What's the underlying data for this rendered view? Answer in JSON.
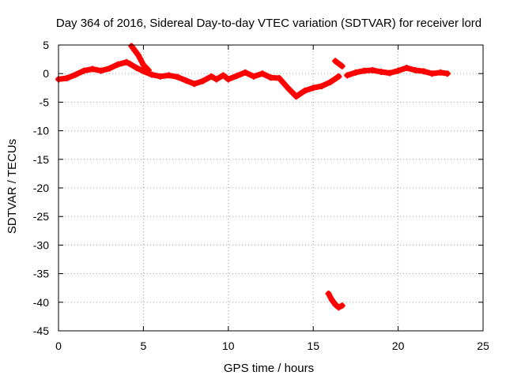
{
  "chart_data": {
    "type": "scatter",
    "title": "Day 364 of 2016, Sidereal Day-to-day VTEC variation (SDTVAR) for receiver lord",
    "xlabel": "GPS time / hours",
    "ylabel": "SDTVAR / TECUs",
    "xlim": [
      0,
      25
    ],
    "ylim": [
      -45,
      5
    ],
    "xticks": [
      0,
      5,
      10,
      15,
      20,
      25
    ],
    "yticks": [
      5,
      0,
      -5,
      -10,
      -15,
      -20,
      -25,
      -30,
      -35,
      -40,
      -45
    ],
    "grid": true,
    "series": [
      {
        "name": "SDTVAR",
        "color": "#ff0000",
        "segments": [
          [
            [
              0,
              -1.0
            ],
            [
              0.5,
              -0.8
            ],
            [
              1.0,
              -0.2
            ],
            [
              1.5,
              0.5
            ],
            [
              2.0,
              0.8
            ],
            [
              2.5,
              0.5
            ],
            [
              3.0,
              0.9
            ],
            [
              3.5,
              1.6
            ],
            [
              4.0,
              2.0
            ],
            [
              4.2,
              1.7
            ],
            [
              4.6,
              1.0
            ],
            [
              5.0,
              0.4
            ],
            [
              5.5,
              -0.2
            ],
            [
              6.0,
              -0.5
            ],
            [
              6.5,
              -0.3
            ],
            [
              7.0,
              -0.6
            ],
            [
              7.5,
              -1.2
            ],
            [
              8.0,
              -1.8
            ],
            [
              8.5,
              -1.3
            ],
            [
              9.0,
              -0.5
            ],
            [
              9.3,
              -1.0
            ],
            [
              9.7,
              -0.3
            ],
            [
              10.0,
              -1.0
            ],
            [
              10.5,
              -0.4
            ],
            [
              11.0,
              0.2
            ],
            [
              11.5,
              -0.5
            ],
            [
              12.0,
              0.0
            ],
            [
              12.5,
              -0.7
            ],
            [
              13.0,
              -0.8
            ],
            [
              13.5,
              -2.5
            ],
            [
              14.0,
              -4.0
            ],
            [
              14.5,
              -3.0
            ],
            [
              15.0,
              -2.5
            ],
            [
              15.5,
              -2.2
            ],
            [
              16.0,
              -1.5
            ],
            [
              16.5,
              -0.5
            ]
          ],
          [
            [
              4.3,
              4.8
            ],
            [
              4.7,
              3.2
            ],
            [
              5.0,
              1.5
            ],
            [
              5.3,
              0.6
            ]
          ],
          [
            [
              16.3,
              2.2
            ],
            [
              16.7,
              1.3
            ]
          ],
          [
            [
              17.0,
              -0.3
            ],
            [
              17.5,
              0.2
            ],
            [
              18.0,
              0.5
            ],
            [
              18.5,
              0.6
            ],
            [
              19.0,
              0.3
            ],
            [
              19.5,
              0.1
            ],
            [
              20.0,
              0.5
            ],
            [
              20.5,
              1.0
            ],
            [
              21.0,
              0.6
            ],
            [
              21.5,
              0.4
            ],
            [
              22.0,
              0.0
            ],
            [
              22.5,
              0.2
            ],
            [
              22.9,
              0.0
            ]
          ],
          [
            [
              15.9,
              -38.5
            ],
            [
              16.1,
              -39.6
            ],
            [
              16.3,
              -40.4
            ],
            [
              16.5,
              -40.9
            ],
            [
              16.7,
              -40.6
            ]
          ]
        ]
      }
    ]
  }
}
